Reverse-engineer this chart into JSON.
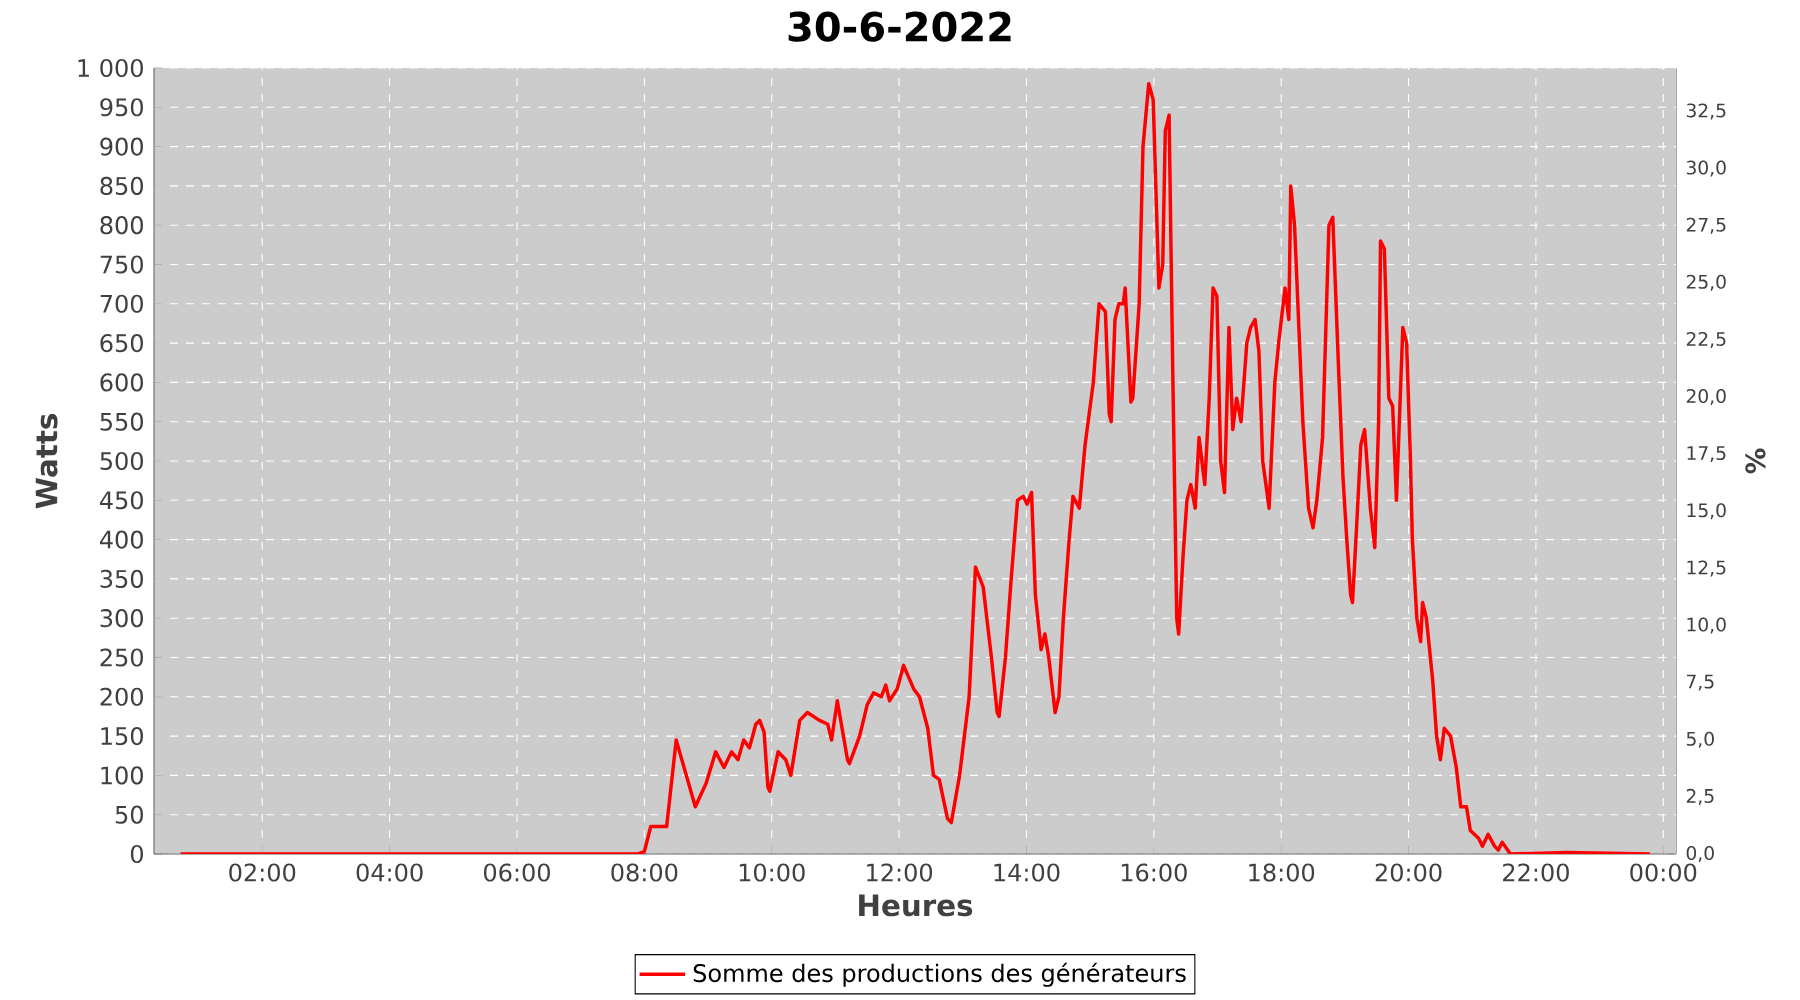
{
  "chart_data": {
    "type": "line",
    "title": "30-6-2022",
    "xlabel": "Heures",
    "ylabel": "Watts",
    "y2label": "%",
    "x": [
      0.72,
      4,
      7.9,
      8.0,
      8.1,
      8.35,
      8.5,
      8.8,
      8.97,
      9.12,
      9.25,
      9.37,
      9.47,
      9.56,
      9.65,
      9.75,
      9.81,
      9.88,
      9.94,
      9.97,
      10.1,
      10.22,
      10.3,
      10.44,
      10.56,
      10.75,
      10.88,
      10.94,
      11.03,
      11.19,
      11.22,
      11.38,
      11.5,
      11.6,
      11.72,
      11.79,
      11.85,
      11.97,
      12.07,
      12.23,
      12.32,
      12.45,
      12.54,
      12.63,
      12.76,
      12.82,
      12.95,
      13.1,
      13.2,
      13.32,
      13.45,
      13.54,
      13.57,
      13.67,
      13.76,
      13.86,
      13.95,
      14.01,
      14.08,
      14.14,
      14.23,
      14.29,
      14.35,
      14.45,
      14.51,
      14.58,
      14.67,
      14.73,
      14.83,
      14.92,
      15.05,
      15.14,
      15.24,
      15.3,
      15.33,
      15.39,
      15.45,
      15.52,
      15.55,
      15.64,
      15.67,
      15.77,
      15.83,
      15.92,
      15.99,
      16.05,
      16.08,
      16.14,
      16.18,
      16.24,
      16.3,
      16.36,
      16.39,
      16.46,
      16.52,
      16.58,
      16.65,
      16.71,
      16.8,
      16.87,
      16.93,
      16.99,
      17.05,
      17.11,
      17.18,
      17.24,
      17.3,
      17.37,
      17.46,
      17.52,
      17.59,
      17.65,
      17.71,
      17.81,
      17.9,
      17.96,
      18.06,
      18.12,
      18.15,
      18.21,
      18.34,
      18.43,
      18.5,
      18.56,
      18.65,
      18.75,
      18.81,
      18.9,
      18.97,
      19.03,
      19.09,
      19.12,
      19.18,
      19.25,
      19.31,
      19.4,
      19.47,
      19.53,
      19.56,
      19.62,
      19.69,
      19.75,
      19.81,
      19.91,
      19.97,
      20.03,
      20.06,
      20.13,
      20.19,
      20.22,
      20.28,
      20.38,
      20.44,
      20.5,
      20.56,
      20.66,
      20.75,
      20.82,
      20.91,
      20.97,
      21.1,
      21.16,
      21.25,
      21.35,
      21.41,
      21.47,
      21.6,
      22.5,
      23.79
    ],
    "series": [
      {
        "name": "Somme des productions des générateurs",
        "color": "#ff0000",
        "values": [
          0,
          0,
          0,
          3,
          35,
          35,
          145,
          60,
          90,
          130,
          110,
          130,
          120,
          145,
          135,
          165,
          170,
          155,
          85,
          80,
          130,
          120,
          100,
          170,
          180,
          170,
          165,
          145,
          195,
          120,
          115,
          150,
          190,
          205,
          200,
          215,
          195,
          210,
          240,
          210,
          200,
          160,
          100,
          95,
          45,
          40,
          100,
          200,
          365,
          340,
          250,
          180,
          175,
          250,
          350,
          450,
          455,
          445,
          460,
          330,
          260,
          280,
          250,
          180,
          200,
          300,
          400,
          455,
          440,
          520,
          600,
          700,
          690,
          560,
          550,
          680,
          700,
          700,
          720,
          575,
          580,
          700,
          900,
          980,
          960,
          800,
          720,
          750,
          920,
          940,
          600,
          300,
          280,
          380,
          450,
          470,
          440,
          530,
          470,
          580,
          720,
          710,
          500,
          460,
          670,
          540,
          580,
          550,
          650,
          670,
          680,
          640,
          500,
          440,
          600,
          650,
          720,
          680,
          850,
          800,
          550,
          440,
          415,
          450,
          530,
          800,
          810,
          620,
          480,
          400,
          330,
          320,
          410,
          520,
          540,
          440,
          390,
          550,
          780,
          770,
          580,
          570,
          450,
          670,
          650,
          500,
          400,
          300,
          270,
          320,
          300,
          220,
          150,
          120,
          160,
          150,
          110,
          60,
          60,
          30,
          20,
          10,
          25,
          10,
          5,
          15,
          0,
          2,
          0
        ]
      }
    ],
    "xlim": [
      0.3,
      24.2
    ],
    "ylim": [
      0,
      1000
    ],
    "xticks": [
      {
        "value": 2,
        "label": "02:00"
      },
      {
        "value": 4,
        "label": "04:00"
      },
      {
        "value": 6,
        "label": "06:00"
      },
      {
        "value": 8,
        "label": "08:00"
      },
      {
        "value": 10,
        "label": "10:00"
      },
      {
        "value": 12,
        "label": "12:00"
      },
      {
        "value": 14,
        "label": "14:00"
      },
      {
        "value": 16,
        "label": "16:00"
      },
      {
        "value": 18,
        "label": "18:00"
      },
      {
        "value": 20,
        "label": "20:00"
      },
      {
        "value": 22,
        "label": "22:00"
      },
      {
        "value": 24,
        "label": "00:00"
      }
    ],
    "yticks": [
      0,
      50,
      100,
      150,
      200,
      250,
      300,
      350,
      400,
      450,
      500,
      550,
      600,
      650,
      700,
      750,
      800,
      850,
      900,
      950,
      {
        "value": 1000,
        "label": "1 000"
      }
    ],
    "y2lim": [
      0,
      34.4
    ],
    "y2ticks": [
      {
        "value": 0,
        "label": "0,0"
      },
      {
        "value": 2.5,
        "label": "2,5"
      },
      {
        "value": 5,
        "label": "5,0"
      },
      {
        "value": 7.5,
        "label": "7,5"
      },
      {
        "value": 10,
        "label": "10,0"
      },
      {
        "value": 12.5,
        "label": "12,5"
      },
      {
        "value": 15,
        "label": "15,0"
      },
      {
        "value": 17.5,
        "label": "17,5"
      },
      {
        "value": 20,
        "label": "20,0"
      },
      {
        "value": 22.5,
        "label": "22,5"
      },
      {
        "value": 25,
        "label": "25,0"
      },
      {
        "value": 27.5,
        "label": "27,5"
      },
      {
        "value": 30,
        "label": "30,0"
      },
      {
        "value": 32.5,
        "label": "32,5"
      }
    ],
    "grid": true,
    "legend": "bottom"
  }
}
